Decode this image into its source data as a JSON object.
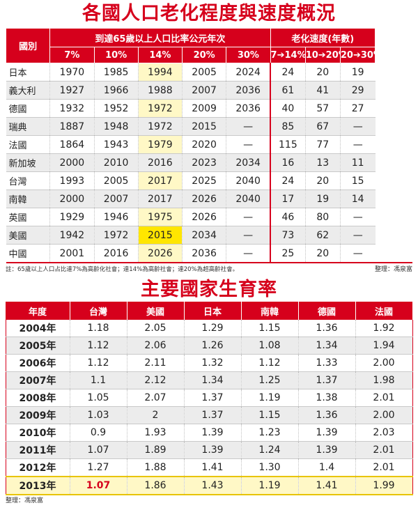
{
  "aging": {
    "title": "各國人口老化程度與速度概況",
    "col_country": "國別",
    "group1": "到達65歲以上人口比率公元年次",
    "group2": "老化速度(年數)",
    "sub_headers": [
      "7%",
      "10%",
      "14%",
      "20%",
      "30%",
      "7➔14%",
      "10➔20%",
      "20➔30%"
    ],
    "rows": [
      {
        "country": "日本",
        "cells": [
          "1970",
          "1985",
          "1994",
          "2005",
          "2024",
          "24",
          "20",
          "19"
        ]
      },
      {
        "country": "義大利",
        "cells": [
          "1927",
          "1966",
          "1988",
          "2007",
          "2036",
          "61",
          "41",
          "29"
        ]
      },
      {
        "country": "德國",
        "cells": [
          "1932",
          "1952",
          "1972",
          "2009",
          "2036",
          "40",
          "57",
          "27"
        ]
      },
      {
        "country": "瑞典",
        "cells": [
          "1887",
          "1948",
          "1972",
          "2015",
          "—",
          "85",
          "67",
          "—"
        ]
      },
      {
        "country": "法國",
        "cells": [
          "1864",
          "1943",
          "1979",
          "2020",
          "—",
          "115",
          "77",
          "—"
        ]
      },
      {
        "country": "新加坡",
        "cells": [
          "2000",
          "2010",
          "2016",
          "2023",
          "2034",
          "16",
          "13",
          "11"
        ]
      },
      {
        "country": "台灣",
        "cells": [
          "1993",
          "2005",
          "2017",
          "2025",
          "2040",
          "24",
          "20",
          "15"
        ]
      },
      {
        "country": "南韓",
        "cells": [
          "2000",
          "2007",
          "2017",
          "2026",
          "2040",
          "17",
          "19",
          "14"
        ]
      },
      {
        "country": "英國",
        "cells": [
          "1929",
          "1946",
          "1975",
          "2026",
          "—",
          "46",
          "80",
          "—"
        ]
      },
      {
        "country": "美國",
        "cells": [
          "1942",
          "1972",
          "2015",
          "2034",
          "—",
          "73",
          "62",
          "—"
        ]
      },
      {
        "country": "中國",
        "cells": [
          "2001",
          "2016",
          "2026",
          "2036",
          "—",
          "25",
          "20",
          "—"
        ]
      }
    ],
    "note": "註：65歲以上人口占比達7%為高齡化社會；達14%為高齡社會；達20%為超高齡社會。",
    "credit": "整理：馮泉富"
  },
  "fertility": {
    "title": "主要國家生育率",
    "headers": [
      "年度",
      "台灣",
      "美國",
      "日本",
      "南韓",
      "德國",
      "法國"
    ],
    "rows": [
      [
        "2004年",
        "1.18",
        "2.05",
        "1.29",
        "1.15",
        "1.36",
        "1.92"
      ],
      [
        "2005年",
        "1.12",
        "2.06",
        "1.26",
        "1.08",
        "1.34",
        "1.94"
      ],
      [
        "2006年",
        "1.12",
        "2.11",
        "1.32",
        "1.12",
        "1.33",
        "2.00"
      ],
      [
        "2007年",
        "1.1",
        "2.12",
        "1.34",
        "1.25",
        "1.37",
        "1.98"
      ],
      [
        "2008年",
        "1.05",
        "2.07",
        "1.37",
        "1.19",
        "1.38",
        "2.01"
      ],
      [
        "2009年",
        "1.03",
        "2",
        "1.37",
        "1.15",
        "1.36",
        "2.00"
      ],
      [
        "2010年",
        "0.9",
        "1.93",
        "1.39",
        "1.23",
        "1.39",
        "2.03"
      ],
      [
        "2011年",
        "1.07",
        "1.89",
        "1.39",
        "1.24",
        "1.39",
        "2.01"
      ],
      [
        "2012年",
        "1.27",
        "1.88",
        "1.41",
        "1.30",
        "1.4",
        "2.01"
      ],
      [
        "2013年",
        "1.07",
        "1.86",
        "1.43",
        "1.19",
        "1.41",
        "1.99"
      ]
    ],
    "credit": "整理：馮泉富"
  },
  "colors": {
    "accent_red": "#d6001c",
    "highlight_pale_yellow": "#fff8c6",
    "highlight_bright_yellow": "#ffe600",
    "stripe_gray": "#ececec"
  }
}
